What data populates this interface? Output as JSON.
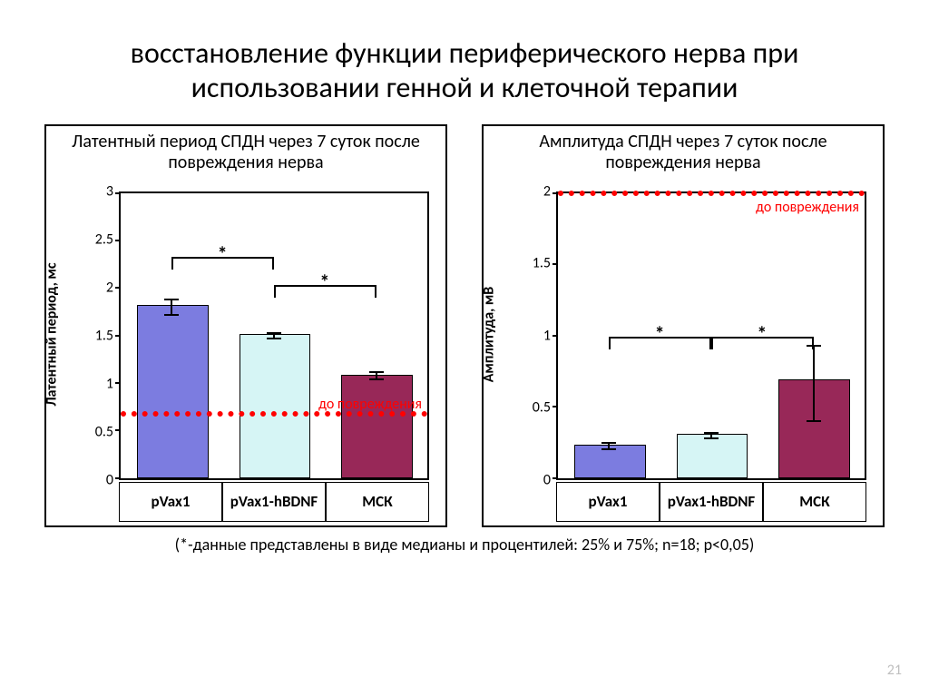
{
  "slide_title": "восстановление функции периферического нерва при использовании генной и клеточной терапии",
  "footnote": "(*-данные представлены в виде медианы и процентилей: 25% и 75%; n=18; p<0,05)",
  "page_number": "21",
  "chart_left": {
    "type": "bar",
    "title": "Латентный период СПДН через 7 суток после повреждения нерва",
    "y_label": "Латентный период, мс",
    "y_min": 0,
    "y_max": 3,
    "y_step": 0.5,
    "y_ticks": [
      "0",
      "0.5",
      "1",
      "1.5",
      "2",
      "2.5",
      "3"
    ],
    "baseline_value": 0.65,
    "baseline_label": "до повреждения",
    "categories": [
      "pVax1",
      "pVax1-hBDNF",
      "МСК"
    ],
    "values": [
      1.8,
      1.5,
      1.07
    ],
    "err_lower": [
      0.08,
      0.03,
      0.03
    ],
    "err_upper": [
      0.08,
      0.03,
      0.05
    ],
    "bar_colors": [
      "#7c7ce0",
      "#d6f5f5",
      "#982858"
    ],
    "background": "#ffffff",
    "sig": [
      {
        "from": 0,
        "to": 1,
        "y": 2.2,
        "label": "*"
      },
      {
        "from": 1,
        "to": 2,
        "y": 1.9,
        "label": "*"
      }
    ]
  },
  "chart_right": {
    "type": "bar",
    "title": "Амплитуда СПДН через 7 суток после повреждения нерва",
    "y_label": "Амплитуда, мВ",
    "y_min": 0,
    "y_max": 2,
    "y_step": 0.5,
    "y_ticks": [
      "0",
      "0.5",
      "1",
      "1.5",
      "2"
    ],
    "baseline_value": 1.98,
    "baseline_label": "до повреждения",
    "categories": [
      "pVax1",
      "pVax1-hBDNF",
      "МСК"
    ],
    "values": [
      0.22,
      0.3,
      0.68
    ],
    "err_lower": [
      0.02,
      0.02,
      0.28
    ],
    "err_upper": [
      0.03,
      0.02,
      0.25
    ],
    "bar_colors": [
      "#7c7ce0",
      "#d6f5f5",
      "#982858"
    ],
    "background": "#ffffff",
    "sig": [
      {
        "from": 0,
        "to": 1,
        "y": 0.9,
        "label": "*"
      },
      {
        "from": 1,
        "to": 2,
        "y": 0.9,
        "label": "*"
      }
    ]
  }
}
